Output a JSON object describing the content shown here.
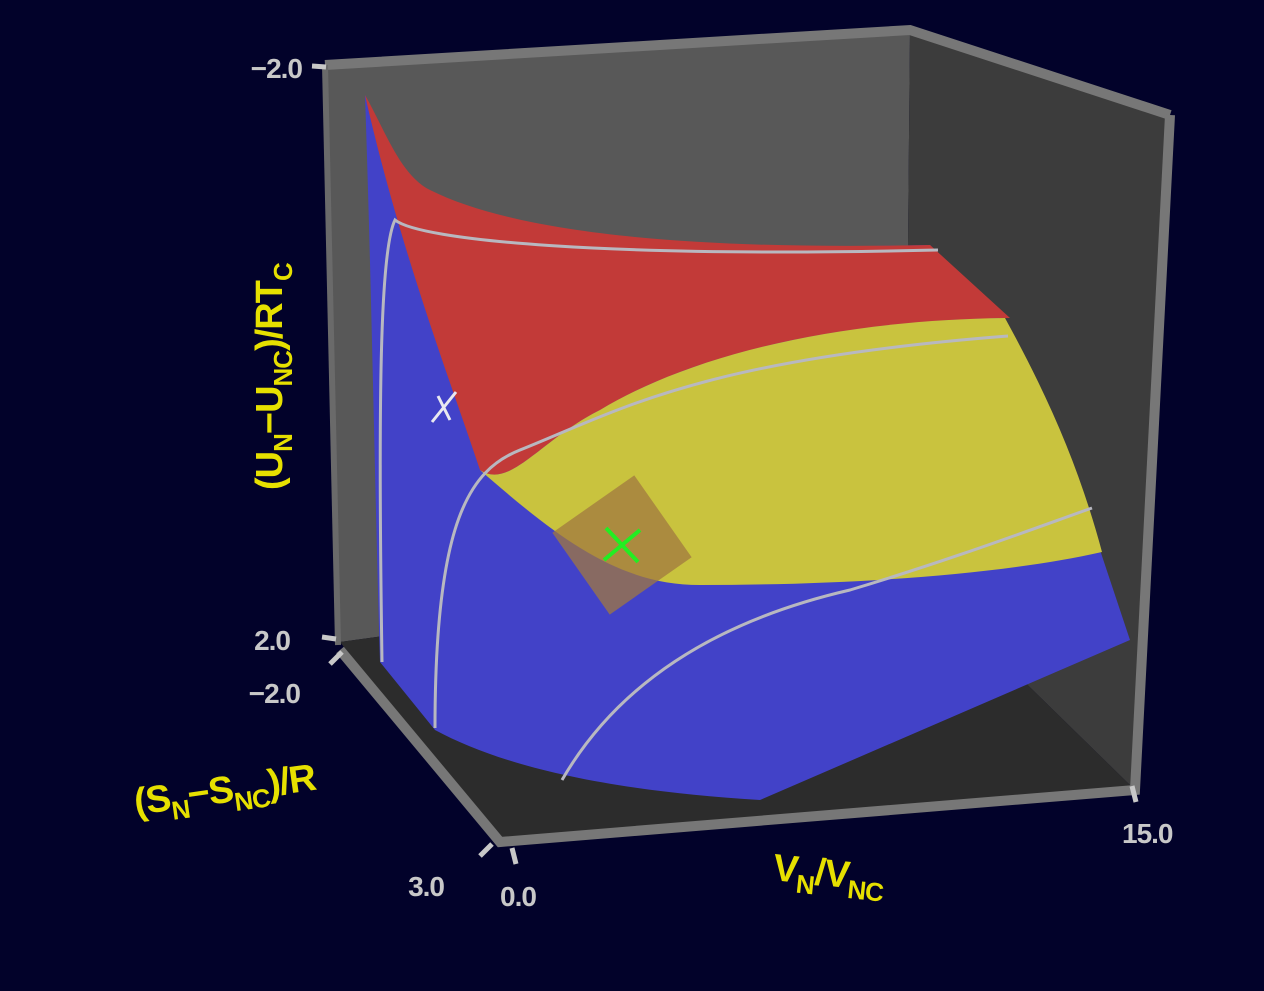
{
  "axes": {
    "energy": {
      "label": [
        {
          "text": "(U"
        },
        {
          "text": "N",
          "sub": true
        },
        {
          "text": "−U"
        },
        {
          "text": "NC",
          "sub": true
        },
        {
          "text": ")/RT"
        },
        {
          "text": "C",
          "sub": true
        }
      ],
      "ticks": [
        "−2.0",
        "2.0"
      ]
    },
    "entropy": {
      "label": [
        {
          "text": "(S"
        },
        {
          "text": "N",
          "sub": true
        },
        {
          "text": "−S"
        },
        {
          "text": "NC",
          "sub": true
        },
        {
          "text": ")/R"
        }
      ],
      "ticks": [
        "−2.0",
        "3.0"
      ]
    },
    "volume": {
      "label": [
        {
          "text": "V"
        },
        {
          "text": "N",
          "sub": true
        },
        {
          "text": "/V"
        },
        {
          "text": "NC",
          "sub": true
        }
      ],
      "ticks": [
        "0.0",
        "15.0"
      ]
    }
  }
}
